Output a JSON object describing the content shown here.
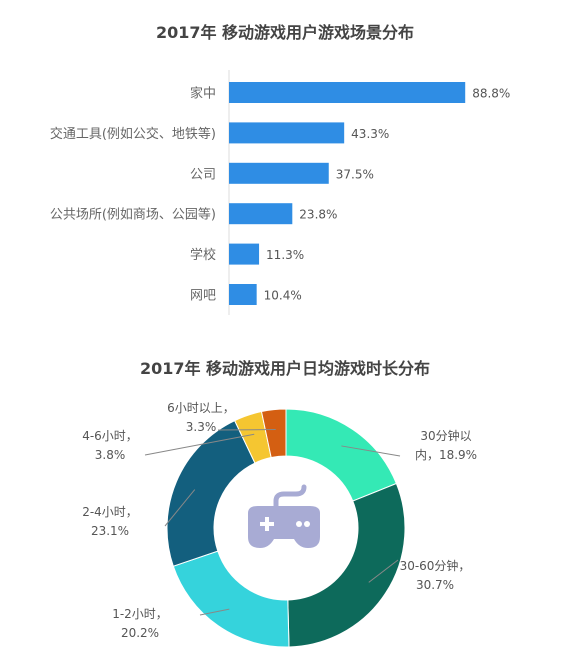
{
  "chart_data": [
    {
      "type": "bar",
      "title": "2017年 移动游戏用户游戏场景分布",
      "categories": [
        "家中",
        "交通工具(例如公交、地铁等)",
        "公司",
        "公共场所(例如商场、公园等)",
        "学校",
        "网吧"
      ],
      "values": [
        88.8,
        43.3,
        37.5,
        23.8,
        11.3,
        10.4
      ],
      "value_labels": [
        "88.8%",
        "43.3%",
        "37.5%",
        "23.8%",
        "11.3%",
        "10.4%"
      ],
      "orientation": "horizontal",
      "unit": "%",
      "bar_color": "#2f8de4",
      "xlim": [
        0,
        100
      ],
      "grid": false
    },
    {
      "type": "pie",
      "style": "donut",
      "title": "2017年 移动游戏用户日均游戏时长分布",
      "center_icon": "gamepad-icon",
      "slices": [
        {
          "label_lines": [
            "30分钟以",
            "内，18.9%"
          ],
          "value": 18.9,
          "color": "#34e9b5"
        },
        {
          "label_lines": [
            "30-60分钟，",
            "30.7%"
          ],
          "value": 30.7,
          "color": "#0d6a5b"
        },
        {
          "label_lines": [
            "1-2小时，",
            "20.2%"
          ],
          "value": 20.2,
          "color": "#35d3dc"
        },
        {
          "label_lines": [
            "2-4小时，",
            "23.1%"
          ],
          "value": 23.1,
          "color": "#135f7e"
        },
        {
          "label_lines": [
            "4-6小时，",
            "3.8%"
          ],
          "value": 3.8,
          "color": "#f5c631"
        },
        {
          "label_lines": [
            "6小时以上，",
            "3.3%"
          ],
          "value": 3.3,
          "color": "#d45f12"
        }
      ]
    }
  ]
}
